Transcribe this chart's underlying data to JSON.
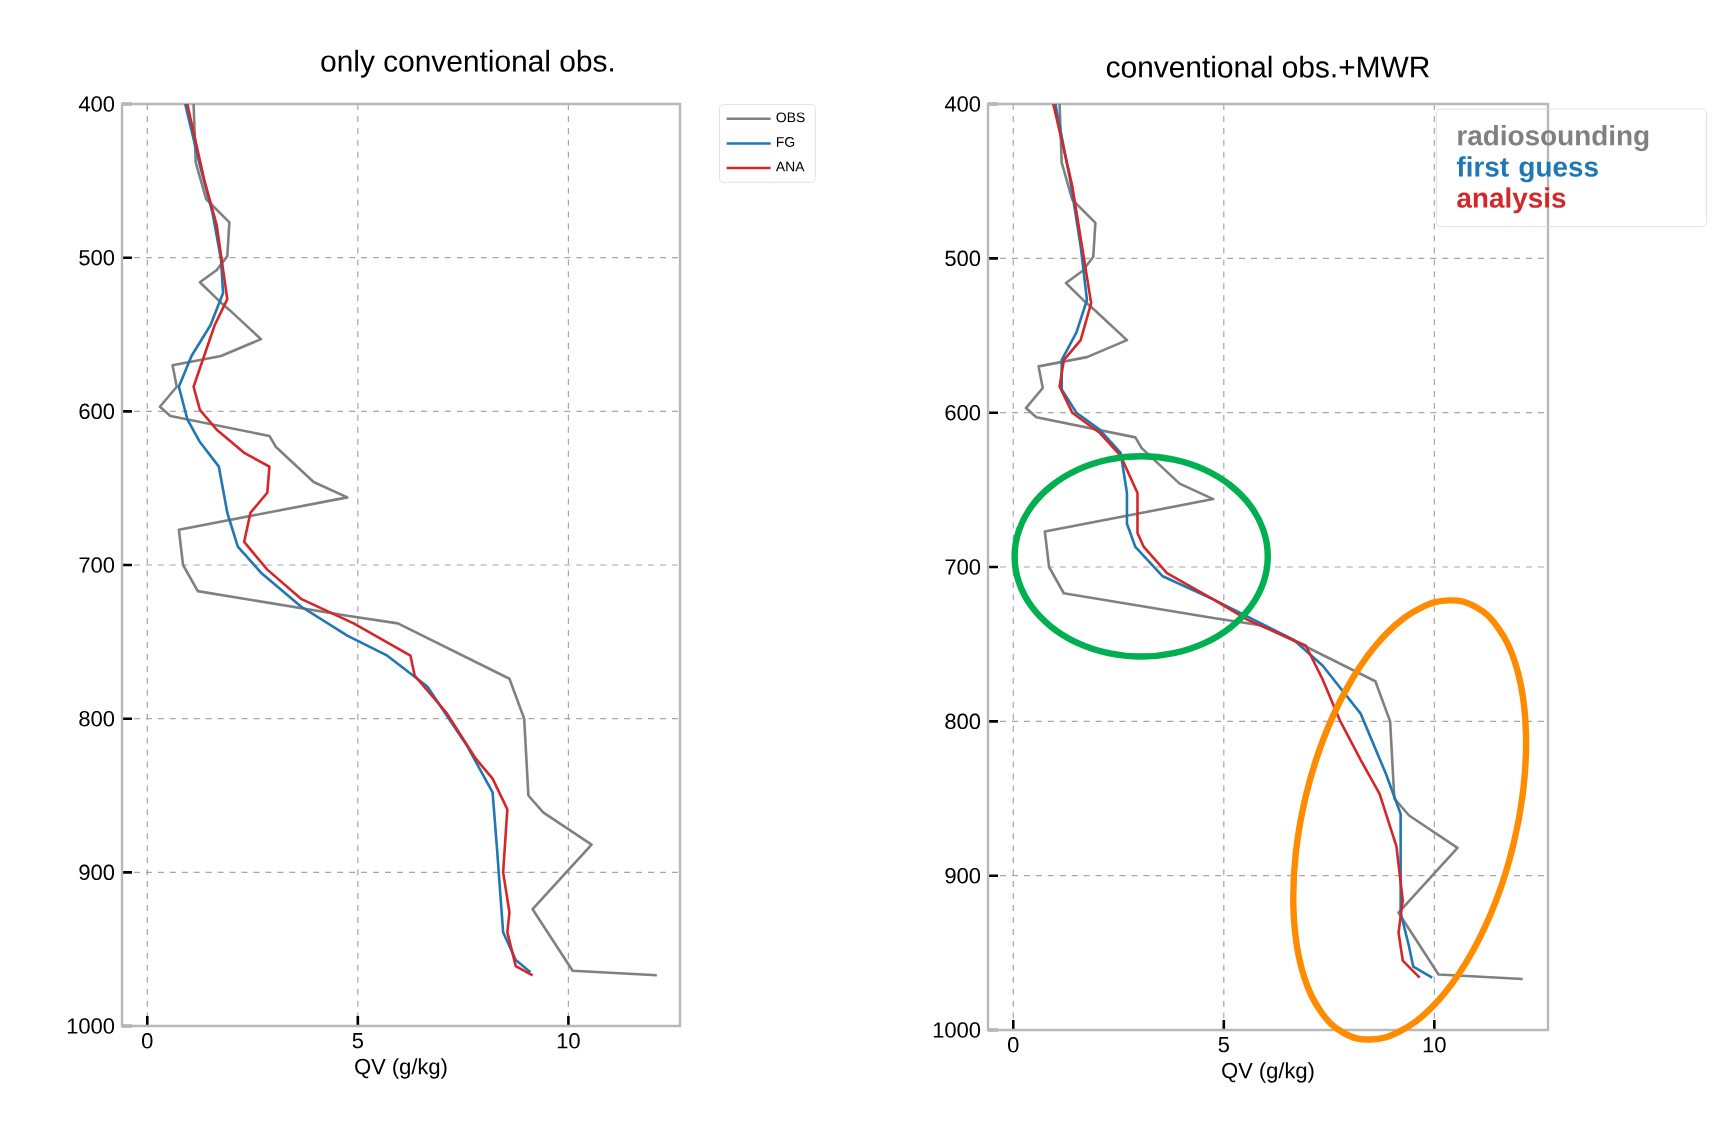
{
  "chart_data": [
    {
      "type": "line",
      "title": "only conventional obs.",
      "xlabel": "QV (g/kg)",
      "xlim": [
        -0.6,
        12.65
      ],
      "ylim": [
        1000,
        400
      ],
      "xticks": [
        0,
        5,
        10
      ],
      "yticks": [
        400,
        500,
        600,
        700,
        800,
        900,
        1000
      ],
      "grid": true,
      "legend": "right",
      "series": [
        {
          "name": "OBS",
          "color": "#808080",
          "x": [
            1.1,
            1.15,
            1.4,
            1.95,
            1.9,
            1.65,
            1.25,
            1.7,
            1.95,
            2.7,
            1.75,
            0.6,
            0.7,
            0.3,
            0.55,
            2.9,
            3.05,
            3.95,
            4.75,
            0.75,
            0.85,
            1.2,
            4.75,
            5.95,
            8.6,
            8.95,
            9.05,
            9.4,
            10.55,
            9.15,
            10.1,
            12.1
          ],
          "values": [
            400,
            438,
            462,
            477,
            499,
            508,
            516,
            528,
            534,
            553,
            564,
            570,
            584,
            597,
            603,
            616,
            623,
            646,
            656,
            677,
            700,
            717,
            733,
            738,
            774,
            800,
            850,
            861,
            882,
            924,
            964,
            967
          ]
        },
        {
          "name": "FG",
          "color": "#1f77b4",
          "x": [
            0.9,
            1.25,
            1.55,
            1.75,
            1.8,
            1.5,
            1.05,
            0.75,
            0.95,
            1.25,
            1.7,
            1.9,
            2.15,
            2.7,
            3.65,
            4.75,
            5.7,
            6.65,
            7.6,
            8.2,
            8.3,
            8.45,
            8.75,
            9.1
          ],
          "values": [
            400,
            440,
            471,
            501,
            523,
            544,
            564,
            584,
            605,
            620,
            636,
            666,
            688,
            705,
            727,
            746,
            759,
            779,
            818,
            848,
            883,
            939,
            957,
            965
          ]
        },
        {
          "name": "ANA",
          "color": "#d62728",
          "x": [
            0.95,
            1.35,
            1.65,
            1.9,
            1.6,
            1.1,
            1.25,
            1.65,
            2.3,
            2.9,
            2.85,
            2.45,
            2.3,
            2.85,
            3.65,
            4.9,
            6.25,
            6.35,
            7.1,
            7.8,
            8.2,
            8.55,
            8.45,
            8.6,
            8.55,
            8.75,
            9.15
          ],
          "values": [
            400,
            449,
            479,
            527,
            544,
            584,
            599,
            612,
            627,
            636,
            653,
            666,
            685,
            703,
            722,
            738,
            759,
            772,
            796,
            826,
            839,
            859,
            900,
            926,
            939,
            961,
            967
          ]
        }
      ]
    },
    {
      "type": "line",
      "title": "conventional obs.+MWR",
      "xlabel": "QV (g/kg)",
      "xlim": [
        -0.6,
        12.7
      ],
      "ylim": [
        1000,
        400
      ],
      "xticks": [
        0,
        5,
        10
      ],
      "yticks": [
        400,
        500,
        600,
        700,
        800,
        900,
        1000
      ],
      "grid": true,
      "legend": "top right",
      "series": [
        {
          "name": "radiosounding",
          "color": "#808080",
          "x": [
            1.1,
            1.15,
            1.4,
            1.95,
            1.9,
            1.65,
            1.25,
            1.7,
            1.95,
            2.7,
            1.75,
            0.6,
            0.7,
            0.3,
            0.55,
            2.9,
            3.05,
            3.95,
            4.75,
            0.75,
            0.85,
            1.2,
            4.75,
            5.95,
            8.6,
            8.95,
            9.05,
            9.4,
            10.55,
            9.15,
            10.1,
            12.1
          ],
          "values": [
            400,
            438,
            462,
            477,
            499,
            508,
            516,
            528,
            534,
            553,
            564,
            570,
            584,
            597,
            603,
            616,
            623,
            646,
            656,
            677,
            700,
            717,
            733,
            738,
            774,
            800,
            850,
            861,
            882,
            924,
            964,
            967
          ]
        },
        {
          "name": "first guess",
          "color": "#1f77b4",
          "x": [
            1.0,
            1.35,
            1.6,
            1.75,
            1.5,
            1.15,
            1.15,
            1.5,
            2.05,
            2.55,
            2.7,
            2.7,
            2.9,
            3.55,
            4.75,
            5.7,
            6.65,
            7.35,
            8.25,
            8.85,
            9.2,
            9.2,
            9.4,
            9.5,
            9.95
          ],
          "values": [
            400,
            449,
            492,
            527,
            548,
            566,
            585,
            600,
            611,
            626,
            652,
            672,
            687,
            706,
            721,
            734,
            747,
            764,
            795,
            834,
            860,
            924,
            946,
            959,
            966
          ]
        },
        {
          "name": "analysis",
          "color": "#d62728",
          "x": [
            0.95,
            1.4,
            1.85,
            1.6,
            1.2,
            1.1,
            1.4,
            2.05,
            2.55,
            2.95,
            2.95,
            3.1,
            3.65,
            4.75,
            5.55,
            6.95,
            7.35,
            7.75,
            8.25,
            8.7,
            9.1,
            9.25,
            9.15,
            9.25,
            9.65
          ],
          "values": [
            400,
            453,
            529,
            553,
            566,
            583,
            600,
            613,
            628,
            652,
            678,
            687,
            704,
            721,
            734,
            751,
            773,
            799,
            825,
            847,
            881,
            916,
            937,
            955,
            966
          ]
        }
      ]
    }
  ]
}
